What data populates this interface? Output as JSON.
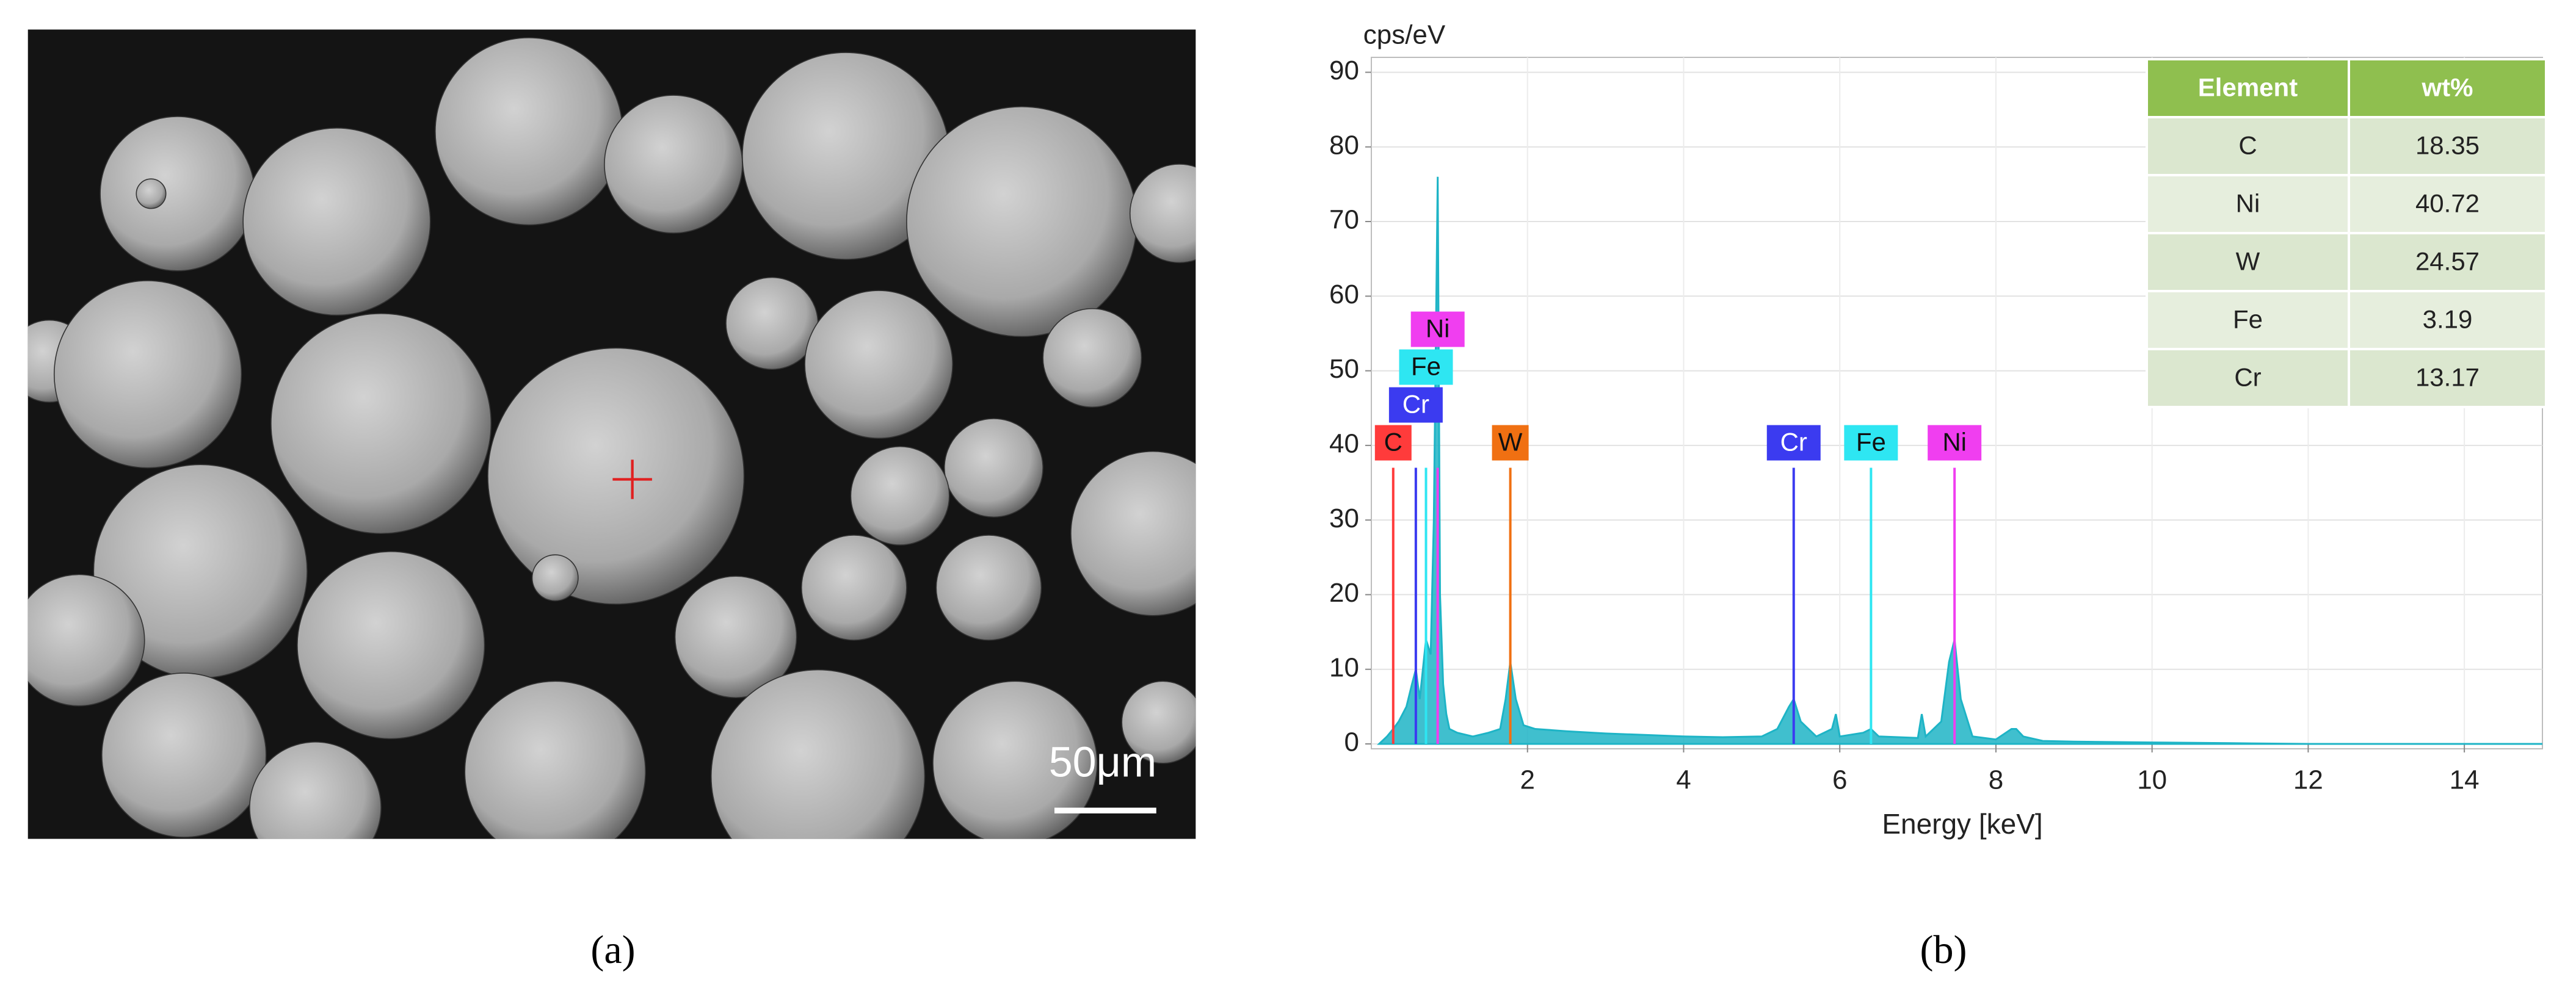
{
  "panel_labels": [
    "(a)",
    "(b)"
  ],
  "image": {
    "scale_bar": "50μm"
  },
  "table": {
    "header": [
      "Element",
      "wt%"
    ],
    "rows": [
      [
        "C",
        "18.35"
      ],
      [
        "Ni",
        "40.72"
      ],
      [
        "W",
        "24.57"
      ],
      [
        "Fe",
        "3.19"
      ],
      [
        "Cr",
        "13.17"
      ]
    ]
  },
  "chart_data": {
    "type": "line",
    "y_label": "cps/eV",
    "x_label": "Energy [keV]",
    "x": [
      0.1,
      0.2,
      0.28,
      0.35,
      0.45,
      0.52,
      0.57,
      0.62,
      0.7,
      0.76,
      0.8,
      0.85,
      0.88,
      0.92,
      0.96,
      1.0,
      1.1,
      1.3,
      1.5,
      1.65,
      1.72,
      1.78,
      1.85,
      1.95,
      2.1,
      2.5,
      3,
      3.5,
      4,
      4.5,
      5,
      5.2,
      5.35,
      5.41,
      5.5,
      5.7,
      5.9,
      5.95,
      6.0,
      6.3,
      6.4,
      6.5,
      7.0,
      7.05,
      7.1,
      7.3,
      7.4,
      7.47,
      7.55,
      7.7,
      8.0,
      8.2,
      8.26,
      8.35,
      8.6,
      9,
      10,
      11,
      12,
      13,
      14,
      15
    ],
    "series": [
      {
        "color": "#1eb4c6",
        "values": [
          0,
          1,
          2,
          3,
          5,
          8,
          10,
          6,
          14,
          12,
          30,
          76,
          20,
          8,
          4,
          2,
          1.5,
          1,
          1.5,
          2,
          6,
          11,
          6,
          2.5,
          2,
          1.7,
          1.4,
          1.2,
          1,
          0.9,
          1,
          2,
          5,
          6,
          3,
          1,
          2,
          4,
          1,
          1.5,
          2,
          1,
          0.8,
          4,
          1,
          3,
          11,
          14,
          6,
          1,
          0.6,
          2,
          2,
          1,
          0.4,
          0.3,
          0.2,
          0.1,
          0,
          0,
          0,
          0
        ]
      }
    ],
    "markers": [
      {
        "label": "C",
        "x": 0.28,
        "y": 37,
        "color": "#ff3b3b"
      },
      {
        "label": "Cr",
        "x": 0.57,
        "y": 37,
        "color": "#3b3bf0"
      },
      {
        "label": "Fe",
        "x": 0.7,
        "y": 37,
        "color": "#2ee6f2"
      },
      {
        "label": "Ni",
        "x": 0.85,
        "y": 37,
        "color": "#f03ef0"
      },
      {
        "label": "W",
        "x": 1.78,
        "y": 37,
        "color": "#f07012"
      },
      {
        "label": "Cr",
        "x": 5.41,
        "y": 37,
        "color": "#3b3bf0"
      },
      {
        "label": "Fe",
        "x": 6.4,
        "y": 37,
        "color": "#2ee6f2"
      },
      {
        "label": "Ni",
        "x": 7.47,
        "y": 37,
        "color": "#f03ef0"
      }
    ],
    "xlim": [
      0,
      15
    ],
    "xticks": [
      2,
      4,
      6,
      8,
      10,
      12,
      14
    ],
    "ylim": [
      0,
      92
    ],
    "yticks": [
      0,
      10,
      20,
      30,
      40,
      50,
      60,
      70,
      80,
      90
    ],
    "grid": true
  }
}
